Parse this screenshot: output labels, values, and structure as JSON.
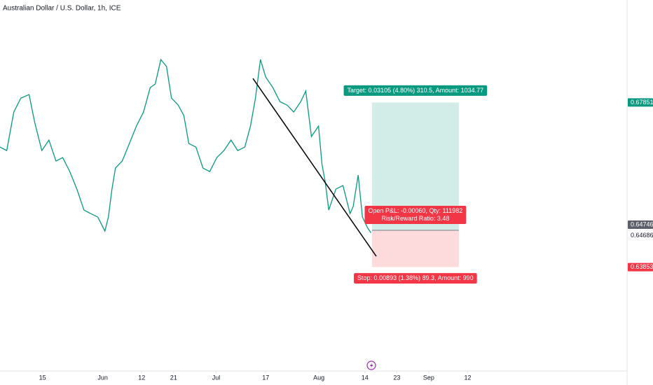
{
  "chart_data": {
    "type": "line",
    "title": "Australian Dollar / U.S. Dollar, 1h, ICE",
    "color": "#089981",
    "x": [
      2.0,
      3.9,
      5.9,
      7.9,
      10.2,
      11.8,
      13.8,
      15.8,
      17.8,
      19.7,
      21.7,
      23.7,
      25.7,
      27.6,
      29.6,
      31.6,
      32.6,
      33.6,
      34.6,
      36.5,
      38.5,
      40.5,
      42.5,
      44.4,
      45.8,
      47.4,
      49.0,
      50.4,
      52.3,
      53.9,
      55.3,
      57.3,
      59.3,
      61.2,
      63.2,
      65.2,
      67.2,
      69.1,
      71.1,
      72.7,
      74.1,
      75.5,
      77.0,
      79.0,
      81.0,
      83.0,
      84.9,
      86.9,
      88.3,
      89.9,
      91.9,
      92.9,
      93.8,
      94.8,
      96.8,
      98.8,
      100.8,
      101.7,
      103.1,
      104.3,
      105.7,
      106.7
    ],
    "values": [
      0.66769,
      0.66684,
      0.67619,
      0.67959,
      0.68044,
      0.67364,
      0.66684,
      0.66939,
      0.66429,
      0.66514,
      0.66174,
      0.65749,
      0.65239,
      0.65154,
      0.65069,
      0.64729,
      0.65069,
      0.65749,
      0.66259,
      0.66429,
      0.66854,
      0.67279,
      0.67619,
      0.68214,
      0.68299,
      0.68894,
      0.68724,
      0.67959,
      0.67789,
      0.67534,
      0.66854,
      0.66769,
      0.66259,
      0.66174,
      0.66514,
      0.66684,
      0.66939,
      0.66684,
      0.66769,
      0.67279,
      0.67959,
      0.68894,
      0.68469,
      0.68214,
      0.67874,
      0.67789,
      0.67619,
      0.67874,
      0.68129,
      0.67024,
      0.67279,
      0.66344,
      0.65919,
      0.65239,
      0.65749,
      0.65834,
      0.65154,
      0.65324,
      0.66089,
      0.65069,
      0.64814,
      0.64686
    ],
    "xlim": [
      2,
      179
    ],
    "ylim": [
      0.6133,
      0.7034
    ],
    "xticks": [
      {
        "value": 14,
        "label": "15"
      },
      {
        "value": 31,
        "label": "Jun"
      },
      {
        "value": 42,
        "label": "12"
      },
      {
        "value": 51,
        "label": "21"
      },
      {
        "value": 63,
        "label": "Jul"
      },
      {
        "value": 77,
        "label": "17"
      },
      {
        "value": 92,
        "label": "Aug"
      },
      {
        "value": 105,
        "label": "14"
      },
      {
        "value": 114,
        "label": "23"
      },
      {
        "value": 123,
        "label": "Sep"
      },
      {
        "value": 134,
        "label": "12"
      }
    ],
    "price_labels": [
      {
        "value": 0.67851,
        "color": "#089981"
      },
      {
        "value": 0.64746,
        "color": "#5d606b"
      },
      {
        "value": 0.64686,
        "color": "#ffffff"
      },
      {
        "value": 0.63853,
        "color": "#f23645"
      }
    ],
    "trendline": {
      "x": [
        73.4,
        108.2
      ],
      "values": [
        0.68435,
        0.64117
      ],
      "color": "#000000"
    },
    "position": {
      "x": [
        107,
        131.5
      ],
      "entry": 0.64746,
      "target": 0.67851,
      "stop": 0.63853,
      "target_label": "Target: 0.03105 (4.80%) 310.5, Amount: 1034.77",
      "pnl_label": "Open P&L: -0.00060, Qty: 111982",
      "ratio_label": "Risk/Reward Ratio: 3.48",
      "stop_label": "Stop: 0.00893 (1.38%) 89.3, Amount: 990",
      "profit_color": "#089981",
      "loss_color": "#f23645"
    }
  }
}
